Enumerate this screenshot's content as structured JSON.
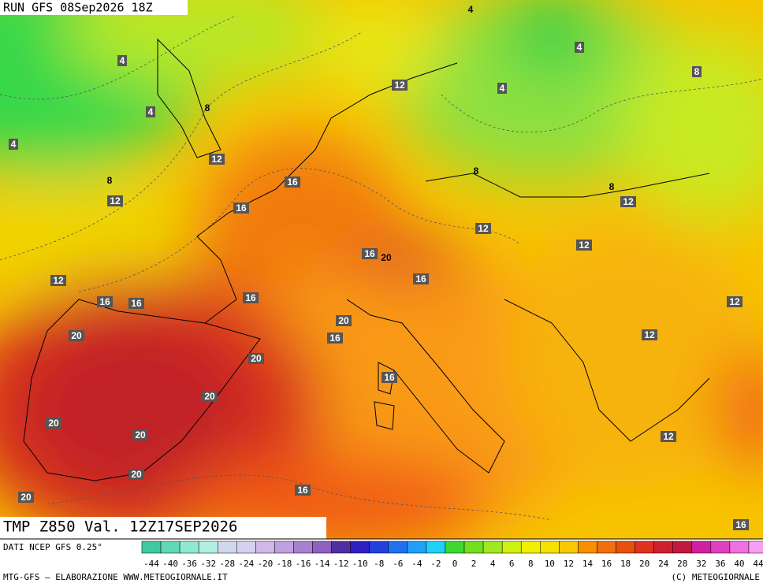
{
  "header": {
    "run": "RUN GFS 08Sep2026 18Z",
    "field": "TMP Z850 Val. 12Z17SEP2026"
  },
  "map": {
    "labels": [
      4,
      4,
      4,
      8,
      12,
      4,
      4,
      8,
      4,
      12,
      8,
      8,
      16,
      8,
      12,
      12,
      16,
      12,
      12,
      16,
      20,
      16,
      12,
      16,
      16,
      16,
      12,
      20,
      20,
      16,
      12,
      20,
      16,
      20,
      20,
      20,
      12,
      20,
      16,
      20,
      16
    ]
  },
  "colorbar": {
    "source": "DATI NCEP GFS 0.25°",
    "ticks": [
      -44,
      -40,
      -36,
      -32,
      -28,
      -24,
      -20,
      -18,
      -16,
      -14,
      -12,
      -10,
      -8,
      -6,
      -4,
      -2,
      0,
      2,
      4,
      6,
      8,
      10,
      12,
      14,
      16,
      18,
      20,
      24,
      28,
      32,
      36,
      40,
      44
    ]
  },
  "footer": {
    "left": "MTG-GFS — ELABORAZIONE WWW.METEOGIORNALE.IT",
    "right": "(C) METEOGIORNALE"
  }
}
